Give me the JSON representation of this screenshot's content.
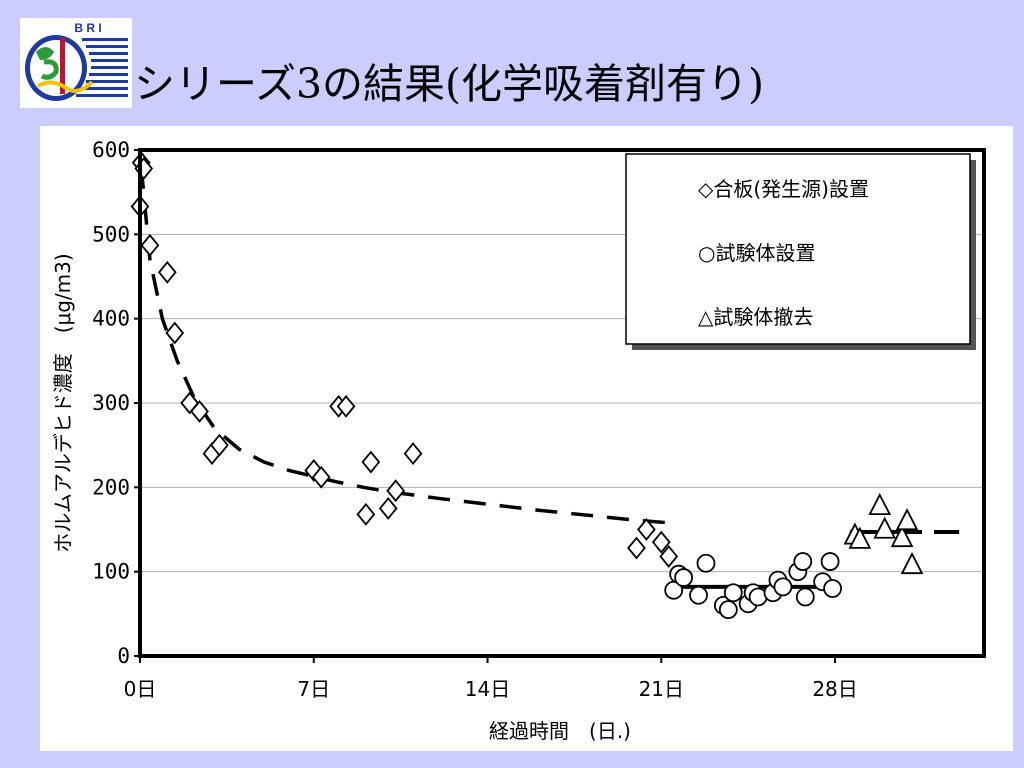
{
  "slide": {
    "title": "シリーズ3の結果(化学吸着剤有り)",
    "logo_text": "B R I"
  },
  "colors": {
    "background": "#ccccff",
    "logo_blue": "#1f3a9e",
    "logo_green": "#2a9a3a",
    "logo_red": "#c8102e",
    "logo_yellow": "#f2c300"
  },
  "chart_data": {
    "type": "scatter",
    "xlabel": "経過時間　(日.)",
    "ylabel": "ホルムアルデヒド濃度　(μg/m3)",
    "xlim": [
      0,
      34
    ],
    "ylim": [
      0,
      600
    ],
    "x_ticks": [
      {
        "value": 0,
        "label": "0日"
      },
      {
        "value": 7,
        "label": "7日"
      },
      {
        "value": 14,
        "label": "14日"
      },
      {
        "value": 21,
        "label": "21日"
      },
      {
        "value": 28,
        "label": "28日"
      }
    ],
    "y_ticks": [
      0,
      100,
      200,
      300,
      400,
      500,
      600
    ],
    "grid": "horizontal",
    "legend_position": "top-right",
    "series": [
      {
        "name": "◇合板(発生源)設置",
        "marker": "diamond",
        "points": [
          [
            0.05,
            585
          ],
          [
            0.15,
            578
          ],
          [
            0,
            533
          ],
          [
            0.4,
            487
          ],
          [
            1.1,
            455
          ],
          [
            1.4,
            383
          ],
          [
            2.0,
            300
          ],
          [
            2.4,
            290
          ],
          [
            2.9,
            240
          ],
          [
            3.2,
            250
          ],
          [
            7.0,
            220
          ],
          [
            7.3,
            212
          ],
          [
            8.0,
            296
          ],
          [
            8.3,
            296
          ],
          [
            9.1,
            168
          ],
          [
            9.3,
            230
          ],
          [
            10.0,
            175
          ],
          [
            10.3,
            196
          ],
          [
            11.0,
            240
          ],
          [
            20.0,
            128
          ],
          [
            20.4,
            150
          ],
          [
            21.0,
            135
          ],
          [
            21.3,
            118
          ]
        ]
      },
      {
        "name": "○試験体設置",
        "marker": "circle",
        "points": [
          [
            21.5,
            78
          ],
          [
            21.7,
            97
          ],
          [
            21.9,
            93
          ],
          [
            22.5,
            72
          ],
          [
            22.8,
            110
          ],
          [
            23.5,
            60
          ],
          [
            23.7,
            55
          ],
          [
            23.9,
            75
          ],
          [
            24.5,
            62
          ],
          [
            24.7,
            75
          ],
          [
            24.9,
            70
          ],
          [
            25.5,
            75
          ],
          [
            25.7,
            90
          ],
          [
            25.9,
            82
          ],
          [
            26.5,
            100
          ],
          [
            26.7,
            112
          ],
          [
            26.8,
            70
          ],
          [
            27.5,
            88
          ],
          [
            27.8,
            112
          ],
          [
            27.9,
            80
          ]
        ]
      },
      {
        "name": "△試験体撤去",
        "marker": "triangle",
        "points": [
          [
            28.8,
            143
          ],
          [
            29.0,
            138
          ],
          [
            29.8,
            178
          ],
          [
            30.0,
            150
          ],
          [
            30.7,
            140
          ],
          [
            30.9,
            160
          ],
          [
            31.1,
            108
          ]
        ]
      }
    ],
    "trend_lines": [
      {
        "style": "dashed",
        "points": [
          [
            0.05,
            580
          ],
          [
            0.4,
            470
          ],
          [
            0.9,
            400
          ],
          [
            1.5,
            350
          ],
          [
            2.2,
            305
          ],
          [
            3.0,
            270
          ],
          [
            4.0,
            245
          ],
          [
            5.0,
            230
          ],
          [
            6.0,
            220
          ],
          [
            7.0,
            213
          ],
          [
            8.0,
            206
          ],
          [
            9.0,
            200
          ],
          [
            10.0,
            195
          ],
          [
            12.0,
            187
          ],
          [
            14.0,
            180
          ],
          [
            16.0,
            173
          ],
          [
            18.0,
            167
          ],
          [
            20.0,
            161
          ],
          [
            21.3,
            158
          ]
        ]
      },
      {
        "style": "solid",
        "points": [
          [
            21.5,
            82
          ],
          [
            28.0,
            82
          ]
        ]
      },
      {
        "style": "dashed-heavy",
        "points": [
          [
            28.6,
            147
          ],
          [
            33.0,
            147
          ]
        ]
      }
    ]
  }
}
